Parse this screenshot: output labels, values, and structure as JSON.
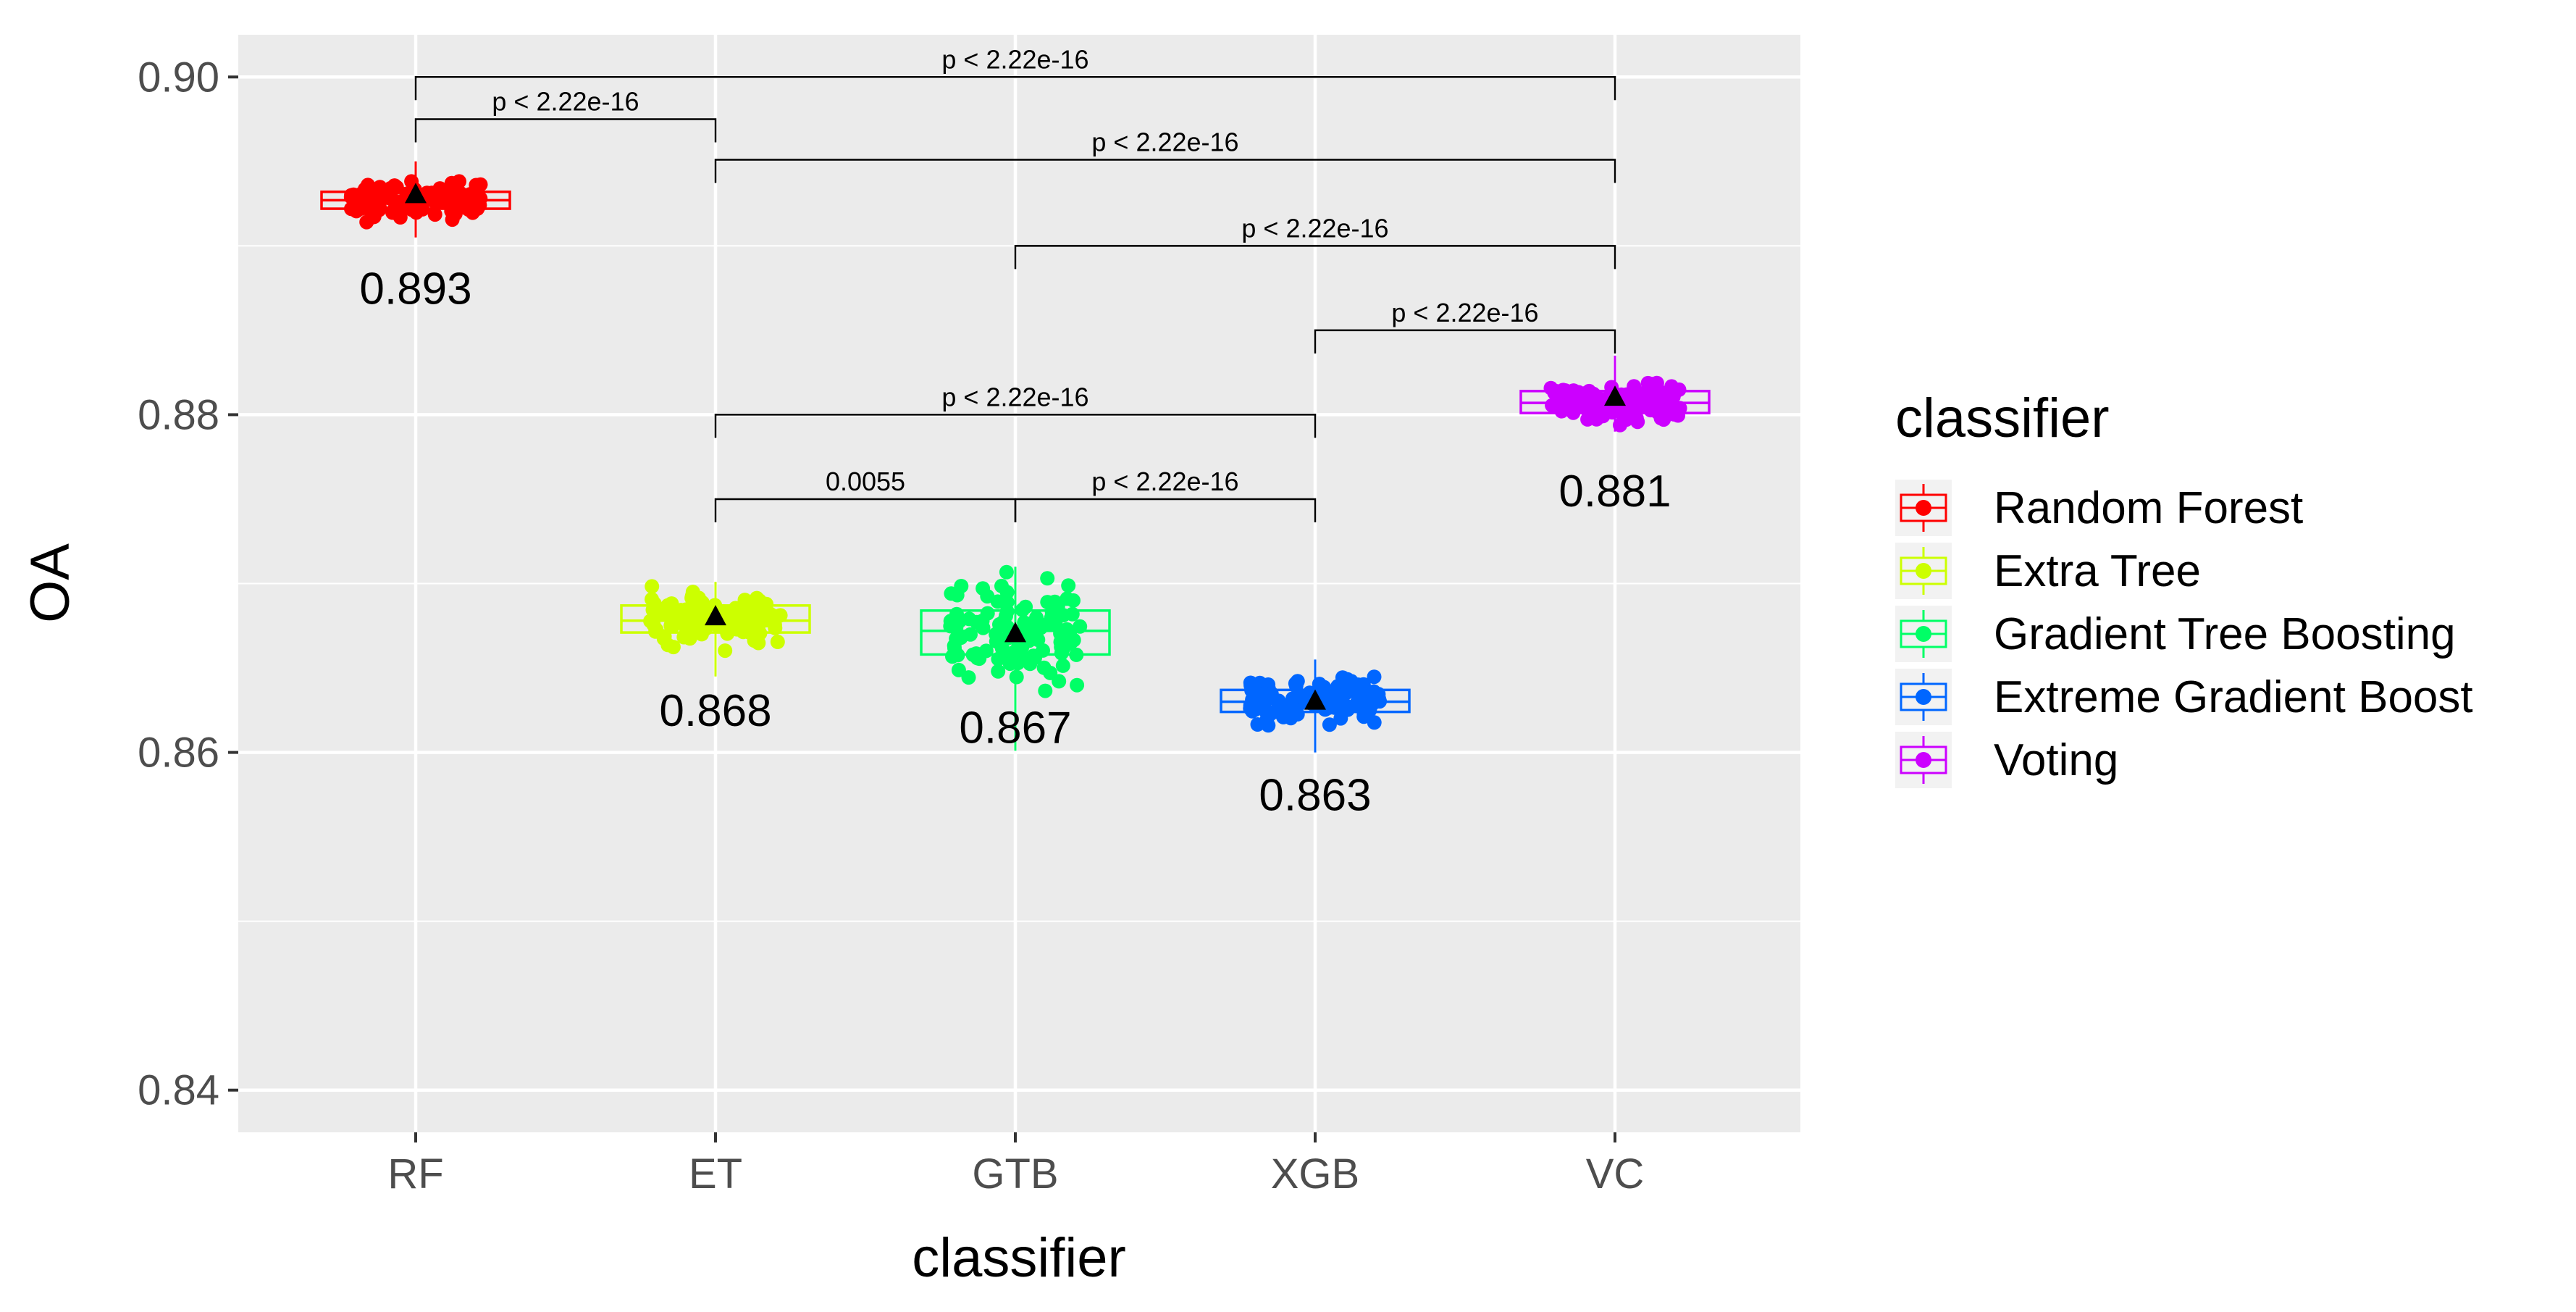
{
  "chart_data": {
    "type": "boxplot",
    "xlabel": "classifier",
    "ylabel": "OA",
    "ylim": [
      0.8375,
      0.9025
    ],
    "yticks": [
      0.84,
      0.86,
      0.88,
      0.9
    ],
    "ytick_labels": [
      "0.84",
      "0.86",
      "0.88",
      "0.90"
    ],
    "grid": true,
    "categories": [
      "RF",
      "ET",
      "GTB",
      "XGB",
      "VC"
    ],
    "legend": {
      "title": "classifier",
      "position": "right",
      "entries": [
        "Random Forest",
        "Extra Tree",
        "Gradient Tree Boosting",
        "Extreme Gradient Boost",
        "Voting"
      ]
    },
    "series": [
      {
        "category": "RF",
        "name": "Random Forest",
        "color": "#FF0000",
        "box": {
          "q1": 0.8922,
          "median": 0.8927,
          "q3": 0.8932
        },
        "mean": 0.893,
        "mean_label": "0.893",
        "points_range": [
          0.8905,
          0.895
        ]
      },
      {
        "category": "ET",
        "name": "Extra Tree",
        "color": "#CCFF00",
        "box": {
          "q1": 0.8671,
          "median": 0.8678,
          "q3": 0.8687
        },
        "mean": 0.868,
        "mean_label": "0.868",
        "points_range": [
          0.8645,
          0.8701
        ]
      },
      {
        "category": "GTB",
        "name": "Gradient Tree Boosting",
        "color": "#00FF66",
        "box": {
          "q1": 0.8658,
          "median": 0.8672,
          "q3": 0.8684
        },
        "mean": 0.867,
        "mean_label": "0.867",
        "points_range": [
          0.8601,
          0.871
        ]
      },
      {
        "category": "XGB",
        "name": "Extreme Gradient Boost",
        "color": "#0066FF",
        "box": {
          "q1": 0.8624,
          "median": 0.863,
          "q3": 0.8637
        },
        "mean": 0.863,
        "mean_label": "0.863",
        "points_range": [
          0.86,
          0.8655
        ]
      },
      {
        "category": "VC",
        "name": "Voting",
        "color": "#CC00FF",
        "box": {
          "q1": 0.8801,
          "median": 0.8807,
          "q3": 0.8814
        },
        "mean": 0.881,
        "mean_label": "0.881",
        "points_range": [
          0.879,
          0.8835
        ]
      }
    ],
    "comparisons": [
      {
        "from": "RF",
        "to": "VC",
        "y": 0.9,
        "label": "p < 2.22e-16"
      },
      {
        "from": "RF",
        "to": "ET",
        "y": 0.8975,
        "label": "p < 2.22e-16"
      },
      {
        "from": "ET",
        "to": "VC",
        "y": 0.8951,
        "label": "p < 2.22e-16"
      },
      {
        "from": "GTB",
        "to": "VC",
        "y": 0.89,
        "label": "p < 2.22e-16"
      },
      {
        "from": "XGB",
        "to": "VC",
        "y": 0.885,
        "label": "p < 2.22e-16"
      },
      {
        "from": "ET",
        "to": "XGB",
        "y": 0.88,
        "label": "p < 2.22e-16"
      },
      {
        "from": "ET",
        "to": "GTB",
        "y": 0.875,
        "label": "0.0055"
      },
      {
        "from": "GTB",
        "to": "XGB",
        "y": 0.875,
        "label": "p < 2.22e-16"
      }
    ]
  }
}
